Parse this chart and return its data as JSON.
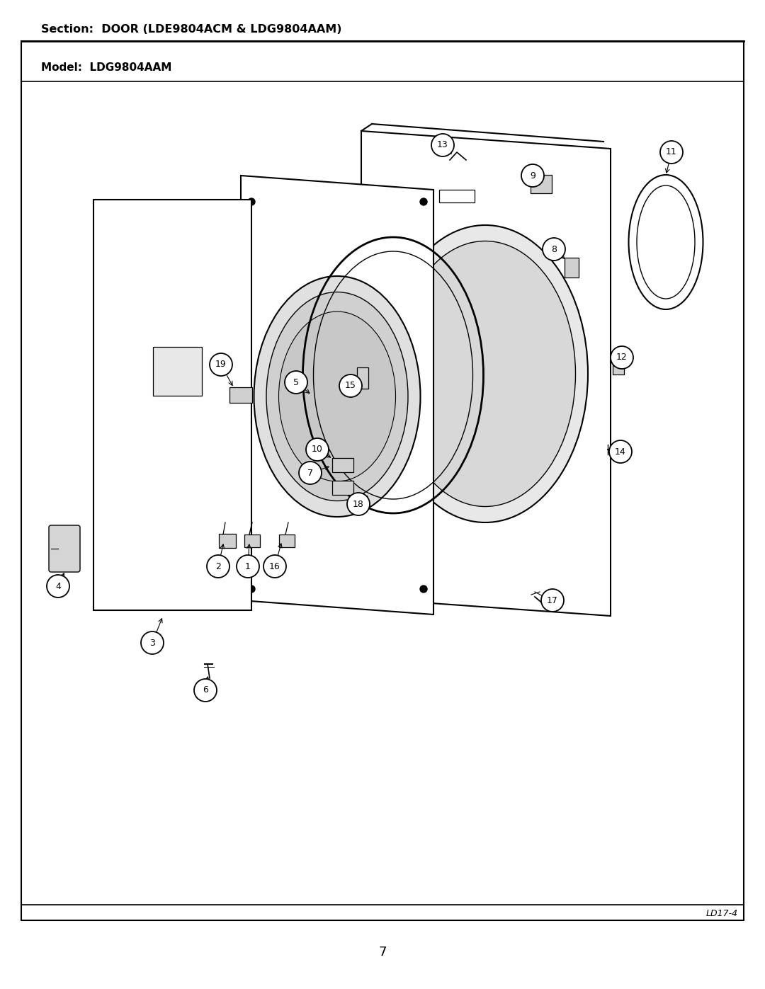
{
  "title_section": "Section:  DOOR (LDE9804ACM & LDG9804AAM)",
  "title_model": "Model:  LDG9804AAM",
  "page_number": "7",
  "code": "LD17-4",
  "bg_color": "#ffffff",
  "text_color": "#000000",
  "fig_width": 10.8,
  "fig_height": 13.97,
  "dpi": 100
}
